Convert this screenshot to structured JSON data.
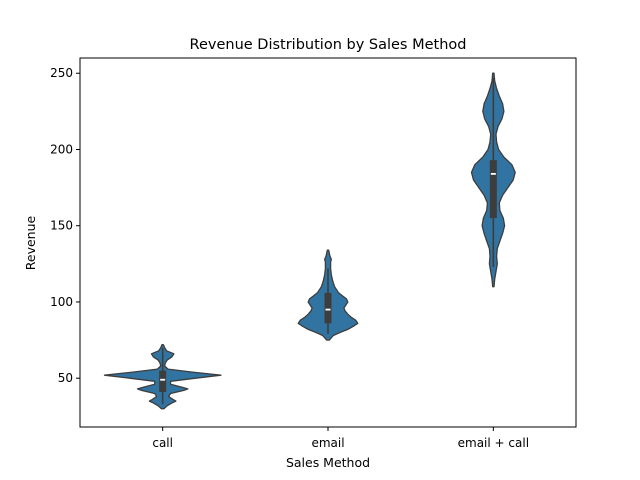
{
  "chart_data": {
    "type": "violin",
    "title": "Revenue Distribution by Sales Method",
    "xlabel": "Sales Method",
    "ylabel": "Revenue",
    "categories": [
      "call",
      "email",
      "email + call"
    ],
    "ylim": [
      18,
      260
    ],
    "yticks": [
      50,
      100,
      150,
      200,
      250
    ],
    "grid": false,
    "legend": "none",
    "colors": {
      "fill": "#3274a1",
      "outline": "#3d3d3d",
      "box": "#3d3d3d",
      "median": "#ffffff"
    },
    "series": [
      {
        "category": "call",
        "range": [
          30,
          72
        ],
        "quartiles": [
          41,
          49,
          55
        ],
        "whiskers": [
          33,
          70
        ],
        "profile": [
          [
            30,
            0.02
          ],
          [
            32,
            0.07
          ],
          [
            34,
            0.15
          ],
          [
            35,
            0.2
          ],
          [
            36,
            0.16
          ],
          [
            38,
            0.09
          ],
          [
            40,
            0.12
          ],
          [
            42,
            0.32
          ],
          [
            43,
            0.38
          ],
          [
            44,
            0.3
          ],
          [
            46,
            0.12
          ],
          [
            48,
            0.12
          ],
          [
            50,
            0.5
          ],
          [
            52,
            0.88
          ],
          [
            54,
            0.45
          ],
          [
            56,
            0.08
          ],
          [
            58,
            0.03
          ],
          [
            60,
            0.04
          ],
          [
            62,
            0.07
          ],
          [
            64,
            0.14
          ],
          [
            66,
            0.17
          ],
          [
            68,
            0.06
          ],
          [
            70,
            0.03
          ],
          [
            72,
            0.01
          ]
        ]
      },
      {
        "category": "email",
        "range": [
          75,
          134
        ],
        "quartiles": [
          86,
          95,
          106
        ],
        "whiskers": [
          79,
          122
        ],
        "profile": [
          [
            75,
            0.02
          ],
          [
            78,
            0.08
          ],
          [
            80,
            0.18
          ],
          [
            82,
            0.3
          ],
          [
            84,
            0.38
          ],
          [
            86,
            0.45
          ],
          [
            88,
            0.42
          ],
          [
            90,
            0.35
          ],
          [
            92,
            0.3
          ],
          [
            94,
            0.26
          ],
          [
            96,
            0.24
          ],
          [
            98,
            0.27
          ],
          [
            100,
            0.3
          ],
          [
            102,
            0.28
          ],
          [
            104,
            0.22
          ],
          [
            106,
            0.16
          ],
          [
            110,
            0.1
          ],
          [
            114,
            0.07
          ],
          [
            118,
            0.05
          ],
          [
            122,
            0.04
          ],
          [
            126,
            0.04
          ],
          [
            128,
            0.05
          ],
          [
            130,
            0.03
          ],
          [
            132,
            0.02
          ],
          [
            134,
            0.01
          ]
        ]
      },
      {
        "category": "email + call",
        "range": [
          110,
          250
        ],
        "quartiles": [
          155,
          184,
          193
        ],
        "whiskers": [
          123,
          247
        ],
        "profile": [
          [
            110,
            0.01
          ],
          [
            115,
            0.02
          ],
          [
            120,
            0.04
          ],
          [
            125,
            0.06
          ],
          [
            130,
            0.05
          ],
          [
            135,
            0.06
          ],
          [
            140,
            0.1
          ],
          [
            145,
            0.14
          ],
          [
            150,
            0.17
          ],
          [
            155,
            0.15
          ],
          [
            160,
            0.1
          ],
          [
            165,
            0.09
          ],
          [
            170,
            0.14
          ],
          [
            175,
            0.22
          ],
          [
            180,
            0.3
          ],
          [
            185,
            0.33
          ],
          [
            190,
            0.28
          ],
          [
            195,
            0.16
          ],
          [
            200,
            0.08
          ],
          [
            205,
            0.05
          ],
          [
            210,
            0.04
          ],
          [
            215,
            0.07
          ],
          [
            220,
            0.13
          ],
          [
            225,
            0.16
          ],
          [
            230,
            0.14
          ],
          [
            235,
            0.09
          ],
          [
            240,
            0.05
          ],
          [
            245,
            0.02
          ],
          [
            250,
            0.01
          ]
        ]
      }
    ]
  }
}
